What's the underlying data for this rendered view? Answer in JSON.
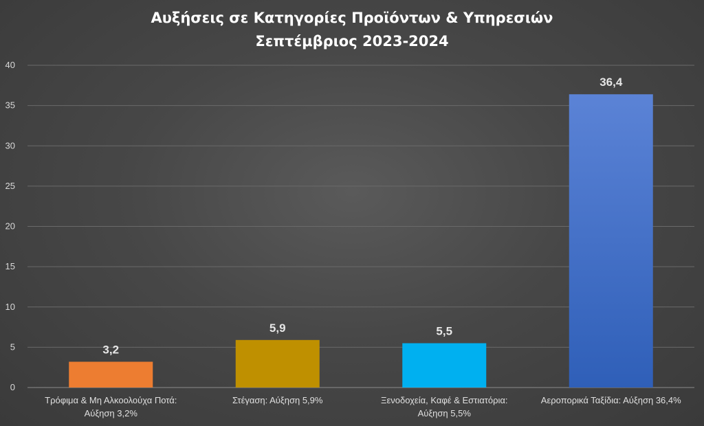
{
  "chart_data": {
    "type": "bar",
    "title": [
      "Αυξήσεις σε Κατηγορίες Προϊόντων & Υπηρεσιών",
      "Σεπτέμβριος 2023-2024"
    ],
    "categories": [
      [
        "Τρόφιμα & Μη Αλκοολούχα Ποτά:",
        "Αύξηση 3,2%"
      ],
      [
        "Στέγαση: Αύξηση 5,9%"
      ],
      [
        "Ξενοδοχεία, Καφέ & Εστιατόρια:",
        "Αύξηση 5,5%"
      ],
      [
        "Αεροπορικά Ταξίδια: Αύξηση 36,4%"
      ]
    ],
    "values": [
      3.2,
      5.9,
      5.5,
      36.4
    ],
    "data_labels": [
      "3,2",
      "5,9",
      "5,5",
      "36,4"
    ],
    "colors": [
      "#ed7d31",
      "#bf9000",
      "#00b0f0",
      "#4472c4"
    ],
    "ylim": [
      0,
      40
    ],
    "yticks": [
      0,
      5,
      10,
      15,
      20,
      25,
      30,
      35,
      40
    ],
    "grid": true,
    "legend": "none"
  }
}
